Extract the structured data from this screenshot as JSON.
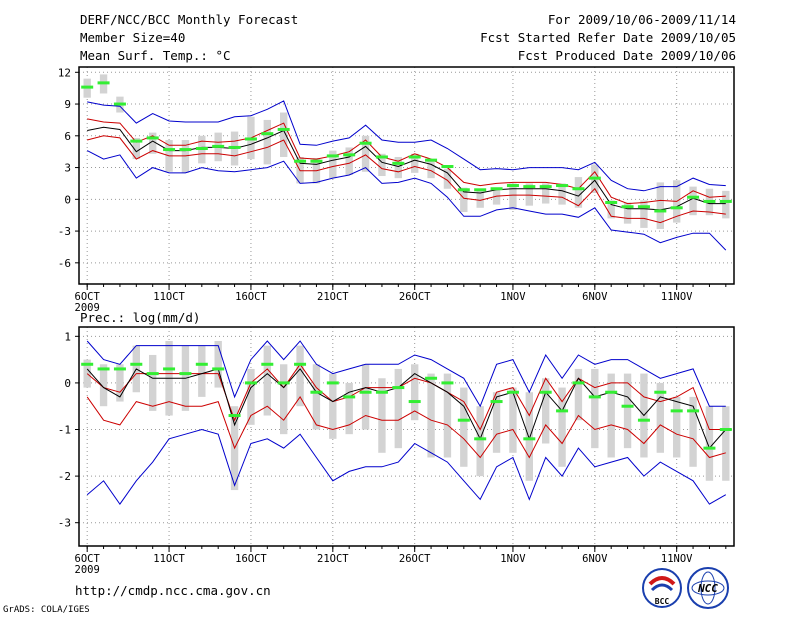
{
  "header": {
    "left": [
      "DERF/NCC/BCC Monthly Forecast",
      "Member Size=40",
      "Mean Surf. Temp.: °C"
    ],
    "right": [
      "For 2009/10/06-2009/11/14",
      "Fcst Started Refer Date 2009/10/05",
      "Fcst Produced Date 2009/10/06"
    ]
  },
  "footer": {
    "url": "http://cmdp.ncc.cma.gov.cn",
    "credit": "GrADS: COLA/IGES"
  },
  "logos": {
    "bcc": "BCC",
    "ncc": "NCC"
  },
  "colors": {
    "envelope": "#0000cc",
    "spread": "#cc0000",
    "mean": "#000000",
    "obs": "#33ee33",
    "bar": "#d3d3d3"
  },
  "chart_data": [
    {
      "type": "line",
      "name": "temperature",
      "title": "Mean Surf. Temp.: °C",
      "xlabel": "",
      "ylabel": "",
      "x": [
        1,
        2,
        3,
        4,
        5,
        6,
        7,
        8,
        9,
        10,
        11,
        12,
        13,
        14,
        15,
        16,
        17,
        18,
        19,
        20,
        21,
        22,
        23,
        24,
        25,
        26,
        27,
        28,
        29,
        30,
        31,
        32,
        33,
        34,
        35,
        36,
        37,
        38,
        39,
        40
      ],
      "x_ticks": [
        {
          "day": 1,
          "label": "6OCT",
          "sub": "2009"
        },
        {
          "day": 6,
          "label": "11OCT"
        },
        {
          "day": 11,
          "label": "16OCT"
        },
        {
          "day": 16,
          "label": "21OCT"
        },
        {
          "day": 21,
          "label": "26OCT"
        },
        {
          "day": 27,
          "label": "1NOV"
        },
        {
          "day": 32,
          "label": "6NOV"
        },
        {
          "day": 37,
          "label": "11NOV"
        }
      ],
      "xlim": [
        0.5,
        40.5
      ],
      "ylim": [
        -8,
        12.5
      ],
      "y_ticks": [
        12,
        9,
        6,
        3,
        0,
        -3,
        -6
      ],
      "series": [
        {
          "name": "max",
          "role": "envelope",
          "values": [
            9.2,
            8.9,
            8.8,
            7.2,
            8.1,
            7.4,
            7.3,
            7.3,
            7.3,
            7.8,
            7.9,
            8.5,
            9.3,
            5.2,
            5.1,
            5.5,
            5.8,
            7.0,
            5.6,
            5.4,
            5.4,
            5.6,
            4.8,
            3.8,
            2.8,
            2.9,
            2.8,
            3.0,
            3.0,
            3.0,
            2.8,
            3.5,
            1.8,
            1.0,
            0.8,
            1.2,
            1.2,
            2.0,
            1.4,
            1.3
          ]
        },
        {
          "name": "upper",
          "role": "spread",
          "values": [
            7.6,
            7.3,
            7.2,
            5.4,
            6.0,
            5.1,
            5.1,
            5.5,
            5.4,
            5.5,
            5.8,
            6.5,
            7.2,
            3.9,
            3.8,
            4.1,
            4.5,
            5.6,
            4.0,
            3.6,
            4.3,
            3.8,
            3.0,
            1.6,
            1.3,
            1.5,
            1.6,
            1.6,
            1.6,
            1.4,
            1.0,
            2.6,
            0.2,
            -0.4,
            -0.3,
            -0.1,
            -0.2,
            0.8,
            0.2,
            0.3
          ]
        },
        {
          "name": "mean",
          "role": "mean",
          "values": [
            6.5,
            6.8,
            6.6,
            4.5,
            5.5,
            4.6,
            4.6,
            4.9,
            4.9,
            4.8,
            5.2,
            5.8,
            6.5,
            3.4,
            3.3,
            3.7,
            4.0,
            5.0,
            3.5,
            3.1,
            3.7,
            3.3,
            2.5,
            0.7,
            0.6,
            0.9,
            1.0,
            1.0,
            1.0,
            0.8,
            0.3,
            1.8,
            -0.5,
            -0.9,
            -0.9,
            -1.0,
            -0.7,
            0.1,
            -0.4,
            -0.4
          ]
        },
        {
          "name": "lower",
          "role": "spread",
          "values": [
            5.6,
            6.0,
            5.8,
            3.8,
            4.6,
            4.1,
            4.1,
            4.3,
            4.3,
            4.1,
            4.5,
            4.9,
            5.6,
            2.7,
            2.7,
            3.1,
            3.4,
            4.2,
            2.9,
            2.6,
            3.1,
            2.7,
            1.8,
            0.1,
            -0.1,
            0.3,
            0.4,
            0.4,
            0.3,
            0.2,
            -0.6,
            1.0,
            -1.6,
            -1.8,
            -1.8,
            -2.2,
            -1.6,
            -1.1,
            -1.2,
            -1.4
          ]
        },
        {
          "name": "min",
          "role": "envelope",
          "values": [
            4.6,
            3.8,
            4.2,
            2.0,
            3.0,
            2.5,
            2.5,
            3.0,
            2.7,
            2.6,
            2.8,
            3.0,
            3.6,
            1.5,
            1.6,
            2.0,
            2.3,
            3.0,
            1.5,
            1.6,
            2.0,
            1.5,
            0.2,
            -1.6,
            -1.6,
            -1.0,
            -0.8,
            -1.1,
            -1.4,
            -1.4,
            -1.7,
            -0.8,
            -2.9,
            -3.1,
            -3.3,
            -4.1,
            -3.6,
            -3.2,
            -3.2,
            -4.8
          ]
        },
        {
          "name": "observed",
          "role": "obs",
          "values": [
            10.6,
            11.0,
            9.0,
            5.5,
            5.8,
            4.7,
            4.7,
            4.8,
            5.0,
            4.9,
            5.7,
            6.2,
            6.6,
            3.6,
            3.6,
            4.1,
            4.2,
            5.3,
            4.0,
            3.4,
            4.0,
            3.7,
            3.1,
            0.9,
            0.9,
            1.0,
            1.3,
            1.2,
            1.2,
            1.3,
            1.0,
            2.0,
            -0.3,
            -0.7,
            -0.7,
            -1.1,
            -0.8,
            0.2,
            -0.2,
            -0.2
          ]
        }
      ],
      "bars": {
        "low": [
          9.6,
          10.0,
          8.2,
          3.8,
          4.3,
          2.6,
          2.5,
          3.4,
          3.6,
          3.2,
          3.8,
          3.3,
          4.0,
          1.5,
          1.5,
          2.0,
          2.3,
          2.6,
          2.2,
          2.0,
          2.5,
          2.0,
          1.0,
          -1.2,
          -0.8,
          -0.5,
          -1.0,
          -0.6,
          -0.4,
          -0.5,
          -0.8,
          0.6,
          -1.8,
          -2.3,
          -2.7,
          -2.8,
          -2.2,
          -1.5,
          -1.5,
          -1.8
        ],
        "high": [
          11.4,
          11.8,
          9.7,
          5.8,
          6.3,
          5.6,
          5.6,
          6.0,
          6.3,
          6.4,
          7.8,
          7.5,
          8.2,
          4.0,
          3.9,
          4.6,
          4.9,
          6.0,
          4.3,
          4.0,
          4.3,
          3.8,
          2.9,
          1.1,
          1.0,
          1.1,
          1.5,
          1.5,
          1.5,
          1.5,
          2.1,
          3.3,
          -0.1,
          -0.3,
          -0.1,
          1.6,
          1.8,
          1.2,
          1.0,
          0.8
        ]
      }
    },
    {
      "type": "line",
      "name": "precipitation",
      "title": "Prec.: log(mm/d)",
      "xlabel": "",
      "ylabel": "",
      "x": [
        1,
        2,
        3,
        4,
        5,
        6,
        7,
        8,
        9,
        10,
        11,
        12,
        13,
        14,
        15,
        16,
        17,
        18,
        19,
        20,
        21,
        22,
        23,
        24,
        25,
        26,
        27,
        28,
        29,
        30,
        31,
        32,
        33,
        34,
        35,
        36,
        37,
        38,
        39,
        40
      ],
      "x_ticks": [
        {
          "day": 1,
          "label": "6OCT",
          "sub": "2009"
        },
        {
          "day": 6,
          "label": "11OCT"
        },
        {
          "day": 11,
          "label": "16OCT"
        },
        {
          "day": 16,
          "label": "21OCT"
        },
        {
          "day": 21,
          "label": "26OCT"
        },
        {
          "day": 27,
          "label": "1NOV"
        },
        {
          "day": 32,
          "label": "6NOV"
        },
        {
          "day": 37,
          "label": "11NOV"
        }
      ],
      "xlim": [
        0.5,
        40.5
      ],
      "ylim": [
        -3.5,
        1.2
      ],
      "y_ticks": [
        1,
        0,
        -1,
        -2,
        -3
      ],
      "series": [
        {
          "name": "max",
          "role": "envelope",
          "values": [
            0.9,
            0.5,
            0.4,
            0.8,
            0.8,
            0.8,
            0.8,
            0.8,
            0.8,
            -0.3,
            0.5,
            0.9,
            0.5,
            0.9,
            0.4,
            0.2,
            0.3,
            0.4,
            0.4,
            0.4,
            0.6,
            0.5,
            0.3,
            0.1,
            -0.5,
            0.4,
            0.5,
            -0.2,
            0.6,
            0.1,
            0.6,
            0.4,
            0.5,
            0.5,
            0.3,
            0.1,
            0.2,
            0.3,
            -0.5,
            -0.5
          ]
        },
        {
          "name": "upper",
          "role": "spread",
          "values": [
            0.2,
            -0.1,
            -0.2,
            0.2,
            0.2,
            0.2,
            0.2,
            0.2,
            0.2,
            -0.8,
            0.0,
            0.3,
            -0.1,
            0.4,
            -0.1,
            -0.4,
            -0.3,
            -0.1,
            -0.1,
            -0.1,
            0.1,
            0.0,
            -0.2,
            -0.4,
            -1.0,
            -0.2,
            -0.1,
            -0.7,
            0.1,
            -0.4,
            0.1,
            -0.1,
            0.0,
            0.0,
            -0.3,
            -0.4,
            -0.3,
            -0.1,
            -1.0,
            -1.0
          ]
        },
        {
          "name": "mean",
          "role": "mean",
          "values": [
            0.3,
            -0.1,
            -0.3,
            0.3,
            0.1,
            0.1,
            0.1,
            0.2,
            0.3,
            -0.9,
            -0.1,
            0.2,
            -0.1,
            0.3,
            -0.2,
            -0.4,
            -0.2,
            -0.1,
            -0.2,
            -0.1,
            0.2,
            0.0,
            -0.2,
            -0.5,
            -1.2,
            -0.3,
            -0.2,
            -1.2,
            -0.2,
            -0.6,
            0.1,
            -0.3,
            -0.2,
            -0.3,
            -0.7,
            -0.3,
            -0.4,
            -0.5,
            -1.4,
            -1.0
          ]
        },
        {
          "name": "lower",
          "role": "spread",
          "values": [
            -0.3,
            -0.8,
            -0.9,
            -0.4,
            -0.5,
            -0.4,
            -0.5,
            -0.5,
            -0.4,
            -1.4,
            -0.7,
            -0.5,
            -0.8,
            -0.3,
            -0.9,
            -1.0,
            -0.9,
            -0.7,
            -0.8,
            -0.8,
            -0.6,
            -0.8,
            -0.9,
            -1.2,
            -1.6,
            -1.1,
            -1.0,
            -1.6,
            -0.9,
            -1.3,
            -0.7,
            -1.0,
            -0.9,
            -1.0,
            -1.3,
            -0.9,
            -1.1,
            -1.2,
            -1.6,
            -1.5
          ]
        },
        {
          "name": "min",
          "role": "envelope",
          "values": [
            -2.4,
            -2.1,
            -2.6,
            -2.1,
            -1.7,
            -1.2,
            -1.1,
            -1.0,
            -1.1,
            -2.2,
            -1.3,
            -1.2,
            -1.4,
            -1.1,
            -1.6,
            -2.1,
            -1.9,
            -1.8,
            -1.8,
            -1.7,
            -1.3,
            -1.5,
            -1.7,
            -2.1,
            -2.5,
            -1.8,
            -1.6,
            -2.5,
            -1.6,
            -2.0,
            -1.4,
            -1.8,
            -1.7,
            -1.6,
            -2.0,
            -1.7,
            -1.9,
            -2.1,
            -2.6,
            -2.4
          ]
        },
        {
          "name": "observed",
          "role": "obs",
          "values": [
            0.4,
            0.3,
            0.3,
            0.4,
            0.2,
            0.3,
            0.2,
            0.4,
            0.3,
            -0.7,
            0.0,
            0.4,
            0.0,
            0.4,
            -0.2,
            0.0,
            -0.3,
            -0.2,
            -0.2,
            -0.1,
            -0.4,
            0.1,
            0.0,
            -0.8,
            -1.2,
            -0.4,
            -0.2,
            -1.2,
            -0.2,
            -0.6,
            0.0,
            -0.3,
            -0.2,
            -0.5,
            -0.8,
            -0.2,
            -0.6,
            -0.6,
            -1.4,
            -1.0
          ]
        }
      ],
      "bars": {
        "low": [
          -0.1,
          -0.5,
          -0.4,
          -0.2,
          -0.6,
          -0.7,
          -0.6,
          -0.3,
          -0.1,
          -2.3,
          -0.9,
          -0.7,
          -1.1,
          -0.5,
          -1.0,
          -1.2,
          -1.1,
          -1.0,
          -1.5,
          -1.4,
          -0.8,
          -1.6,
          -1.6,
          -1.8,
          -2.0,
          -1.5,
          -1.5,
          -2.1,
          -1.3,
          -1.8,
          -0.8,
          -1.4,
          -1.6,
          -1.4,
          -1.6,
          -1.5,
          -1.6,
          -1.8,
          -2.1,
          -2.1
        ],
        "high": [
          0.5,
          0.4,
          0.4,
          0.8,
          0.6,
          0.9,
          0.8,
          0.8,
          0.9,
          -0.5,
          0.3,
          0.8,
          0.4,
          0.8,
          0.4,
          0.2,
          0.0,
          0.4,
          0.1,
          0.3,
          0.4,
          0.2,
          0.2,
          -0.1,
          -0.5,
          -0.2,
          -0.1,
          -0.2,
          0.1,
          -0.1,
          0.3,
          0.3,
          0.2,
          0.2,
          0.2,
          0.0,
          -0.3,
          -0.3,
          -0.5,
          -0.5
        ]
      }
    }
  ]
}
